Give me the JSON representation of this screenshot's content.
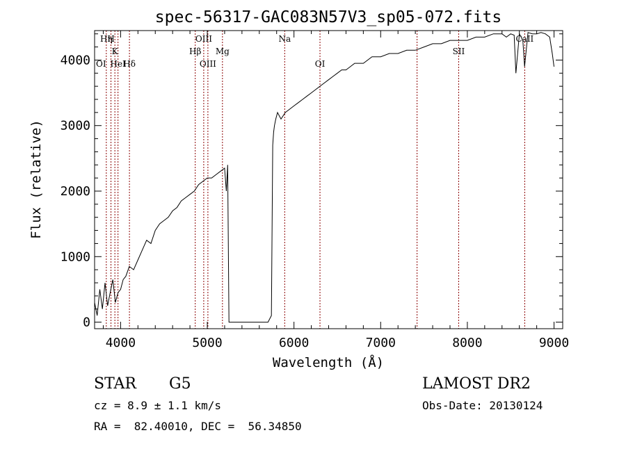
{
  "chart_data": {
    "type": "line",
    "title": "spec-56317-GAC083N57V3_sp05-072.fits",
    "xlabel": "Wavelength (Å)",
    "ylabel": "Flux (relative)",
    "xlim": [
      3700,
      9100
    ],
    "ylim": [
      -100,
      4450
    ],
    "xticks": [
      4000,
      5000,
      6000,
      7000,
      8000,
      9000
    ],
    "yticks": [
      0,
      1000,
      2000,
      3000,
      4000
    ],
    "grid": false,
    "line_color": "#000000",
    "marker_color": "#8b0000",
    "series": [
      {
        "x": [
          3700,
          3730,
          3760,
          3790,
          3820,
          3850,
          3880,
          3910,
          3940,
          3970,
          4000,
          4030,
          4060,
          4100,
          4150,
          4200,
          4250,
          4300,
          4350,
          4400,
          4450,
          4500,
          4550,
          4600,
          4650,
          4700,
          4750,
          4800,
          4850,
          4900,
          4950,
          5000,
          5050,
          5100,
          5150,
          5200,
          5220,
          5235,
          5250,
          5300,
          5400,
          5500,
          5600,
          5700,
          5740,
          5755,
          5765,
          5775,
          5790,
          5810,
          5830,
          5850,
          5900,
          5950,
          6000,
          6050,
          6100,
          6150,
          6200,
          6250,
          6300,
          6350,
          6400,
          6450,
          6500,
          6550,
          6600,
          6650,
          6700,
          6800,
          6900,
          7000,
          7100,
          7200,
          7300,
          7400,
          7500,
          7600,
          7700,
          7800,
          7900,
          8000,
          8100,
          8200,
          8300,
          8400,
          8450,
          8500,
          8540,
          8560,
          8600,
          8640,
          8660,
          8700,
          8750,
          8800,
          8850,
          8900,
          8950,
          8980,
          9000
        ],
        "y": [
          300,
          100,
          500,
          200,
          600,
          250,
          450,
          650,
          300,
          450,
          500,
          650,
          700,
          850,
          800,
          950,
          1100,
          1250,
          1200,
          1400,
          1500,
          1550,
          1600,
          1700,
          1750,
          1850,
          1900,
          1950,
          2000,
          2100,
          2150,
          2200,
          2200,
          2250,
          2300,
          2350,
          2000,
          2400,
          0,
          0,
          0,
          0,
          0,
          0,
          100,
          2700,
          2900,
          3000,
          3100,
          3200,
          3150,
          3100,
          3200,
          3250,
          3300,
          3350,
          3400,
          3450,
          3500,
          3550,
          3600,
          3650,
          3700,
          3750,
          3800,
          3850,
          3850,
          3900,
          3950,
          3950,
          4050,
          4050,
          4100,
          4100,
          4150,
          4150,
          4200,
          4250,
          4250,
          4300,
          4300,
          4300,
          4350,
          4350,
          4400,
          4400,
          4350,
          4400,
          4380,
          3800,
          4400,
          4300,
          3900,
          4420,
          4400,
          4400,
          4420,
          4400,
          4350,
          4100,
          3900
        ]
      }
    ],
    "line_markers": [
      {
        "wl": 3835,
        "label": "Hη",
        "row": 0
      },
      {
        "wl": 3889,
        "label": "H",
        "row": 0
      },
      {
        "wl": 3934,
        "label": "K",
        "row": 1
      },
      {
        "wl": 3970,
        "label": "HeI",
        "row": 2
      },
      {
        "wl": 4102,
        "label": "Hδ",
        "row": 2
      },
      {
        "wl": 4861,
        "label": "Hβ",
        "row": 1
      },
      {
        "wl": 4959,
        "label": "OIII",
        "row": 0
      },
      {
        "wl": 5007,
        "label": "OIII",
        "row": 2
      },
      {
        "wl": 5175,
        "label": "Mg",
        "row": 1
      },
      {
        "wl": 5893,
        "label": "Na",
        "row": 0
      },
      {
        "wl": 6300,
        "label": "OI",
        "row": 2
      },
      {
        "wl": 7420,
        "label": "",
        "row": 0
      },
      {
        "wl": 7900,
        "label": "SII",
        "row": 1
      },
      {
        "wl": 8662,
        "label": "CaII",
        "row": 0
      }
    ],
    "extra_labels": [
      {
        "text": "OI",
        "wl": 3700,
        "row": 2
      }
    ]
  },
  "info": {
    "object_type": "STAR",
    "subclass": "G5",
    "survey": "LAMOST DR2",
    "cz": "cz = 8.9 ± 1.1 km/s",
    "obs_date": "Obs-Date: 20130124",
    "coords": "RA =  82.40010, DEC =  56.34850"
  }
}
